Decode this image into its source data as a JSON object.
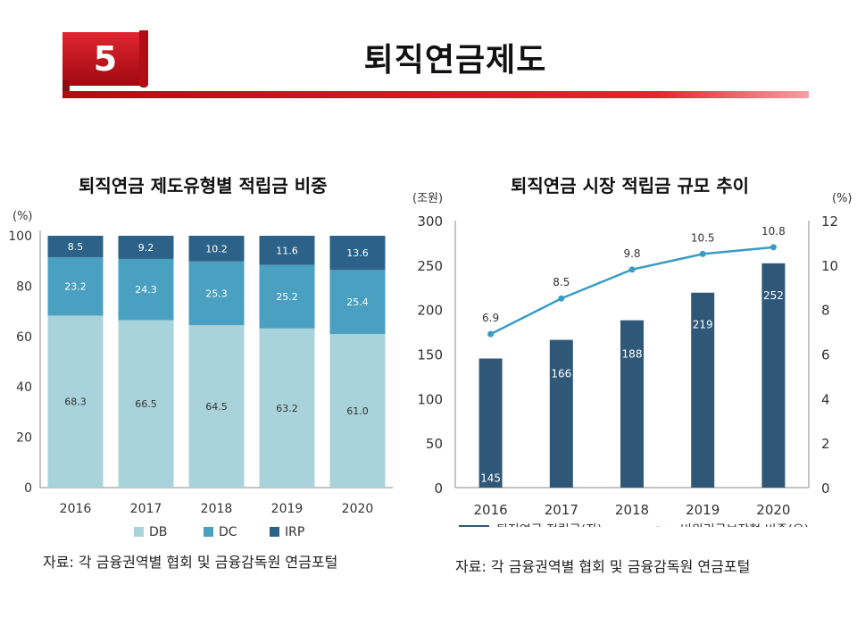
{
  "slide": {
    "number": "5",
    "title": "퇴직연금제도"
  },
  "colors": {
    "accent_red": "#c8101a",
    "db": "#a9d3da",
    "dc": "#4aa0c0",
    "irp": "#2c6287",
    "bar": "#2f5878",
    "line": "#3a9cc4"
  },
  "chart_data": [
    {
      "type": "bar",
      "stacked": true,
      "title": "퇴직연금 제도유형별 적립금 비중",
      "unit": "(%)",
      "categories": [
        "2016",
        "2017",
        "2018",
        "2019",
        "2020"
      ],
      "series": [
        {
          "name": "DB",
          "values": [
            68.3,
            66.5,
            64.5,
            63.2,
            61.0
          ],
          "labels": [
            "68.3",
            "66.5",
            "64.5",
            "63.2",
            "61.0"
          ]
        },
        {
          "name": "DC",
          "values": [
            23.2,
            24.3,
            25.3,
            25.2,
            25.4
          ],
          "labels": [
            "23.2",
            "24.3",
            "25.3",
            "25.2",
            "25.4"
          ]
        },
        {
          "name": "IRP",
          "values": [
            8.5,
            9.2,
            10.2,
            11.6,
            13.6
          ],
          "labels": [
            "8.5",
            "9.2",
            "10.2",
            "11.6",
            "13.6"
          ]
        }
      ],
      "ylim": [
        0,
        100
      ],
      "yticks": [
        "0",
        "20",
        "40",
        "60",
        "80",
        "100"
      ],
      "legend_position": "bottom",
      "source": "자료: 각 금융권역별 협회 및 금융감독원 연금포털"
    },
    {
      "type": "bar",
      "title": "퇴직연금 시장 적립금 규모 추이",
      "unit_left": "(조원)",
      "unit_right": "(%)",
      "categories": [
        "2016",
        "2017",
        "2018",
        "2019",
        "2020"
      ],
      "series": [
        {
          "name": "퇴직연금 적립금(좌)",
          "kind": "bar",
          "axis": "left",
          "values": [
            145,
            166,
            188,
            219,
            252
          ],
          "labels": [
            "145",
            "166",
            "188",
            "219",
            "252"
          ]
        },
        {
          "name": "비원리금보장형 비중(우)",
          "kind": "line",
          "axis": "right",
          "values": [
            6.9,
            8.5,
            9.8,
            10.5,
            10.8
          ],
          "labels": [
            "6.9",
            "8.5",
            "9.8",
            "10.5",
            "10.8"
          ]
        }
      ],
      "ylim_left": [
        0,
        300
      ],
      "ylim_right": [
        0,
        12
      ],
      "yticks_left": [
        "0",
        "50",
        "100",
        "150",
        "200",
        "250",
        "300"
      ],
      "yticks_right": [
        "0",
        "2",
        "4",
        "6",
        "8",
        "10",
        "12"
      ],
      "legend_position": "bottom",
      "source": "자료: 각 금융권역별 협회 및 금융감독원 연금포털"
    }
  ]
}
